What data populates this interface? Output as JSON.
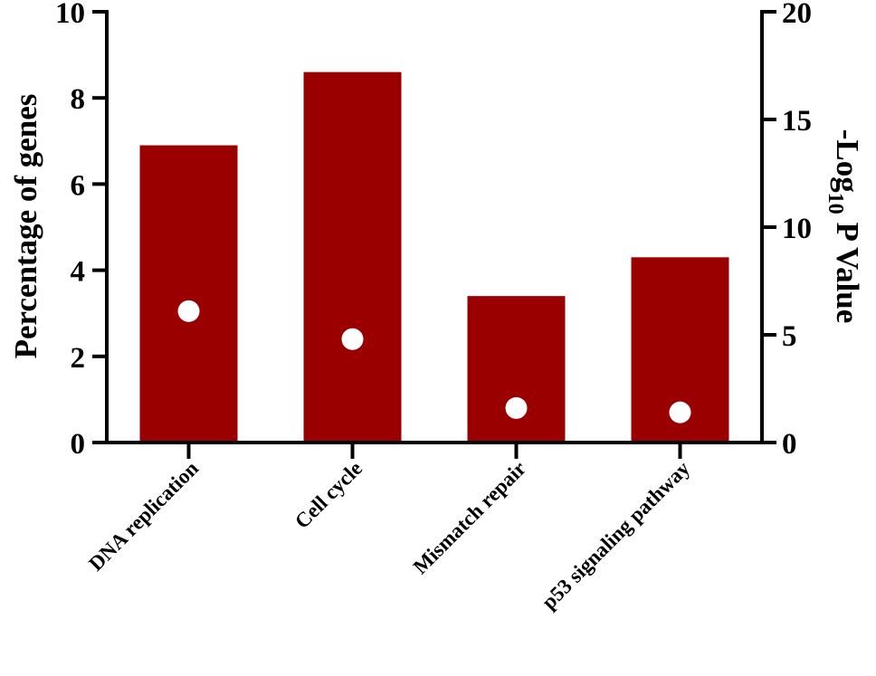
{
  "chart_data": {
    "type": "bar",
    "categories": [
      "DNA replication",
      "Cell cycle",
      "Mismatch repair",
      "p53 signaling pathway"
    ],
    "series": [
      {
        "values": [
          6.9,
          8.6,
          3.4,
          4.3
        ],
        "axis": "left",
        "mark": "bar",
        "color": "#9B0000"
      },
      {
        "values": [
          6.1,
          4.8,
          1.6,
          1.4
        ],
        "axis": "right",
        "mark": "point",
        "color": "#FFFFFF"
      }
    ],
    "title": "",
    "xlabel": "",
    "ylabel": "Percentage of genes",
    "ylabel_right": "-Log10 P Value",
    "ylabel_right_parts": {
      "before": "-Log",
      "sub": "10",
      "after": " P Value"
    },
    "ylim": [
      0,
      10
    ],
    "ylim_right": [
      0,
      20
    ],
    "yticks": [
      "0",
      "2",
      "4",
      "6",
      "8",
      "10"
    ],
    "yticks_right": [
      "0",
      "5",
      "10",
      "15",
      "20"
    ],
    "grid": false,
    "legend": "none"
  }
}
